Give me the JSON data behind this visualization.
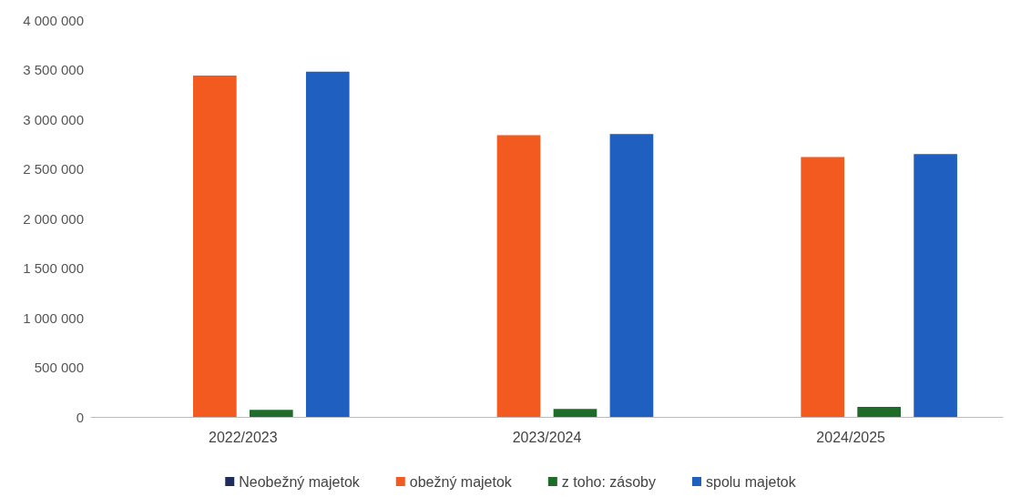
{
  "chart_data": {
    "type": "bar",
    "categories": [
      "2022/2023",
      "2023/2024",
      "2024/2025"
    ],
    "series": [
      {
        "name": "Neobežný majetok",
        "color": "#1f2d5c",
        "values": [
          null,
          null,
          null
        ]
      },
      {
        "name": "obežný majetok",
        "color": "#f25a1f",
        "values": [
          3440000,
          2840000,
          2620000
        ]
      },
      {
        "name": "z toho: zásoby",
        "color": "#1e6b2a",
        "values": [
          70000,
          80000,
          100000
        ]
      },
      {
        "name": "spolu majetok",
        "color": "#1f5fbf",
        "values": [
          3480000,
          2850000,
          2650000
        ]
      }
    ],
    "ylim": [
      0,
      4000000
    ],
    "yticks": [
      0,
      500000,
      1000000,
      1500000,
      2000000,
      2500000,
      3000000,
      3500000,
      4000000
    ],
    "grid": false,
    "legend": "bottom"
  }
}
